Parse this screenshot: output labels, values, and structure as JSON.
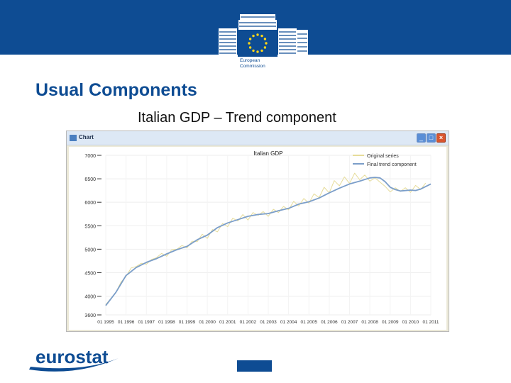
{
  "header": {
    "org_name_line1": "European",
    "org_name_line2": "Commission"
  },
  "slide": {
    "title": "Usual Components",
    "subtitle": "Italian GDP – Trend component"
  },
  "window": {
    "title": "Chart",
    "controls": {
      "minimize": "_",
      "maximize": "□",
      "close": "×"
    }
  },
  "footer": {
    "logo_text": "eurostat"
  },
  "colors": {
    "brand_blue": "#0e4c93",
    "original_series": "#e6dc9a",
    "trend_series": "#7b9ec9"
  },
  "chart_data": {
    "type": "line",
    "title": "Italian GDP",
    "xlabel": "",
    "ylabel": "",
    "ylim": [
      3600,
      7000
    ],
    "yticks": [
      3600,
      4000,
      4500,
      5000,
      5500,
      6000,
      6500,
      7000
    ],
    "ytick_labels": [
      "3600",
      "4000",
      "4500",
      "5000",
      "5500",
      "6000",
      "6500",
      "7000"
    ],
    "xlim": [
      1995,
      2011
    ],
    "xtick_labels": [
      "01 1995",
      "01 1996",
      "01 1997",
      "01 1998",
      "01 1999",
      "01 2000",
      "01 2001",
      "01 2002",
      "01 2003",
      "01 2004",
      "01 2005",
      "01 2006",
      "01 2007",
      "01 2008",
      "01 2009",
      "01 2010",
      "01 2011"
    ],
    "grid": true,
    "legend_position": "top-right",
    "series": [
      {
        "name": "Original series",
        "x": [
          1995.0,
          1995.25,
          1995.5,
          1995.75,
          1996.0,
          1996.25,
          1996.5,
          1996.75,
          1997.0,
          1997.25,
          1997.5,
          1997.75,
          1998.0,
          1998.25,
          1998.5,
          1998.75,
          1999.0,
          1999.25,
          1999.5,
          1999.75,
          2000.0,
          2000.25,
          2000.5,
          2000.75,
          2001.0,
          2001.25,
          2001.5,
          2001.75,
          2002.0,
          2002.25,
          2002.5,
          2002.75,
          2003.0,
          2003.25,
          2003.5,
          2003.75,
          2004.0,
          2004.25,
          2004.5,
          2004.75,
          2005.0,
          2005.25,
          2005.5,
          2005.75,
          2006.0,
          2006.25,
          2006.5,
          2006.75,
          2007.0,
          2007.25,
          2007.5,
          2007.75,
          2008.0,
          2008.25,
          2008.5,
          2008.75,
          2009.0,
          2009.25,
          2009.5,
          2009.75,
          2010.0,
          2010.25,
          2010.5,
          2010.75
        ],
        "y": [
          3820,
          3950,
          4080,
          4300,
          4420,
          4600,
          4630,
          4700,
          4680,
          4780,
          4820,
          4910,
          4850,
          4990,
          5000,
          5080,
          5030,
          5170,
          5160,
          5320,
          5230,
          5420,
          5370,
          5550,
          5480,
          5660,
          5600,
          5740,
          5620,
          5780,
          5720,
          5800,
          5700,
          5850,
          5780,
          5910,
          5840,
          6020,
          5920,
          6080,
          5980,
          6180,
          6100,
          6320,
          6200,
          6460,
          6350,
          6540,
          6400,
          6620,
          6480,
          6580,
          6450,
          6520,
          6430,
          6340,
          6220,
          6310,
          6230,
          6310,
          6210,
          6360,
          6270,
          6410
        ]
      },
      {
        "name": "Final trend component",
        "x": [
          1995.0,
          1995.5,
          1996.0,
          1996.5,
          1997.0,
          1997.5,
          1998.0,
          1998.5,
          1999.0,
          1999.5,
          2000.0,
          2000.5,
          2001.0,
          2001.5,
          2002.0,
          2002.5,
          2003.0,
          2003.5,
          2004.0,
          2004.5,
          2005.0,
          2005.5,
          2006.0,
          2006.5,
          2007.0,
          2007.5,
          2008.0,
          2008.25,
          2008.5,
          2008.75,
          2009.0,
          2009.25,
          2009.5,
          2010.0,
          2010.25,
          2010.5,
          2011.0
        ],
        "y": [
          3800,
          4080,
          4440,
          4610,
          4720,
          4800,
          4900,
          4990,
          5060,
          5200,
          5300,
          5460,
          5560,
          5630,
          5700,
          5740,
          5760,
          5820,
          5870,
          5960,
          6010,
          6090,
          6200,
          6300,
          6390,
          6450,
          6520,
          6530,
          6520,
          6440,
          6320,
          6270,
          6240,
          6260,
          6250,
          6280,
          6390
        ]
      }
    ]
  }
}
